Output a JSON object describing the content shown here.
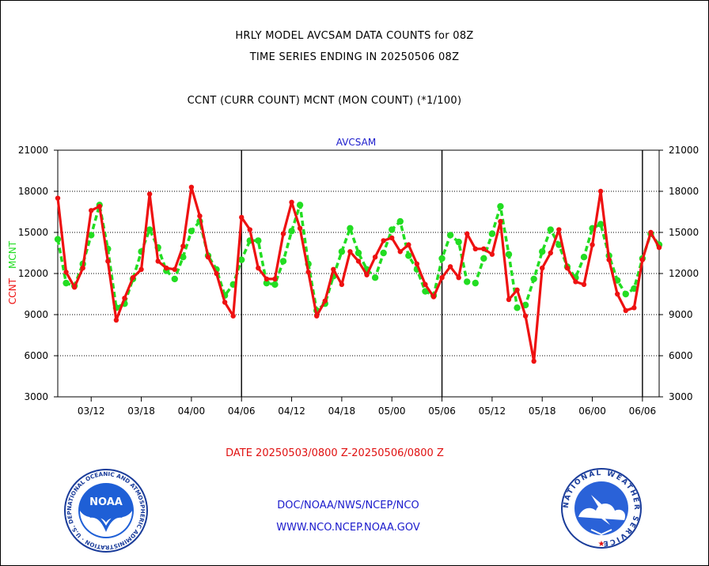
{
  "header": {
    "title_line1": "HRLY MODEL AVCSAM DATA COUNTS for 08Z",
    "title_line2": "TIME SERIES ENDING IN 20250506 08Z",
    "subtitle": "CCNT (CURR COUNT) MCNT (MON COUNT) (*1/100)"
  },
  "footer": {
    "date_range": "DATE 20250503/0800 Z-20250506/0800 Z",
    "credit_line1": "DOC/NOAA/NWS/NCEP/NCO",
    "credit_line2": "WWW.NCO.NCEP.NOAA.GOV"
  },
  "logos": {
    "left_icon": "noaa-logo-icon",
    "left_text": "NOAA",
    "left_ring_text": "NATIONAL OCEANIC AND ATMOSPHERIC ADMINISTRATION · U.S. DEPARTMENT OF COMMERCE",
    "right_icon": "national-weather-service-logo-icon",
    "right_ring_text": "NATIONAL WEATHER SERVICE"
  },
  "colors": {
    "ccnt": "#ee1111",
    "mcnt": "#22dd22",
    "panel_title": "#1a1acc",
    "credit": "#1a1acc"
  },
  "chart_data": {
    "type": "line",
    "panel_title": "AVCSAM",
    "ylabel_ccnt": "CCNT",
    "ylabel_mcnt": "MCNT",
    "ylim": [
      3000,
      21000
    ],
    "yticks": [
      3000,
      6000,
      9000,
      12000,
      15000,
      18000,
      21000
    ],
    "ytick_labels": [
      "3000",
      "6000",
      "9000",
      "12000",
      "15000",
      "18000",
      "21000"
    ],
    "grid": true,
    "x_start": 0,
    "x_end": 72,
    "xtick_positions": [
      4,
      10,
      16,
      22,
      28,
      34,
      40,
      46,
      52,
      58,
      64,
      70
    ],
    "xtick_labels": [
      "03/12",
      "03/18",
      "04/00",
      "04/06",
      "04/12",
      "04/18",
      "05/00",
      "05/06",
      "05/12",
      "05/18",
      "06/00",
      "06/06"
    ],
    "day_boundaries": [
      22,
      46,
      70
    ],
    "series": [
      {
        "name": "CCNT",
        "values": [
          17500,
          12100,
          11000,
          12400,
          16600,
          16900,
          12900,
          8600,
          10200,
          11700,
          12300,
          17800,
          12900,
          12400,
          12300,
          14000,
          18300,
          16200,
          13200,
          12000,
          9900,
          8900,
          16100,
          15200,
          12400,
          11600,
          11600,
          14900,
          17200,
          15300,
          12100,
          8900,
          10000,
          12300,
          11200,
          13600,
          12900,
          11900,
          13200,
          14400,
          14600,
          13600,
          14100,
          12700,
          11200,
          10300,
          11700,
          12500,
          11700,
          14900,
          13800,
          13800,
          13400,
          15800,
          10100,
          10800,
          8900,
          5600,
          12400,
          13500,
          15200,
          12400,
          11400,
          11200,
          14100,
          18000,
          13000,
          10500,
          9300,
          9500,
          13000,
          15000,
          13900
        ]
      },
      {
        "name": "MCNT",
        "values": [
          14500,
          11300,
          11100,
          12700,
          14800,
          17000,
          13800,
          9500,
          9800,
          11600,
          13600,
          15200,
          13900,
          12200,
          11600,
          13200,
          15100,
          15800,
          13300,
          12300,
          10400,
          11200,
          13000,
          14400,
          14400,
          11300,
          11200,
          12900,
          15100,
          17000,
          12700,
          9300,
          9800,
          11800,
          13600,
          15300,
          13500,
          12300,
          11700,
          13500,
          15200,
          15800,
          13300,
          12300,
          10700,
          10400,
          13100,
          14800,
          14300,
          11400,
          11300,
          13100,
          14900,
          16900,
          13400,
          9500,
          9700,
          11600,
          13600,
          15200,
          14100,
          12500,
          11700,
          13200,
          15300,
          15600,
          13300,
          11500,
          10500,
          10900,
          13100,
          14900,
          14100
        ]
      }
    ]
  }
}
